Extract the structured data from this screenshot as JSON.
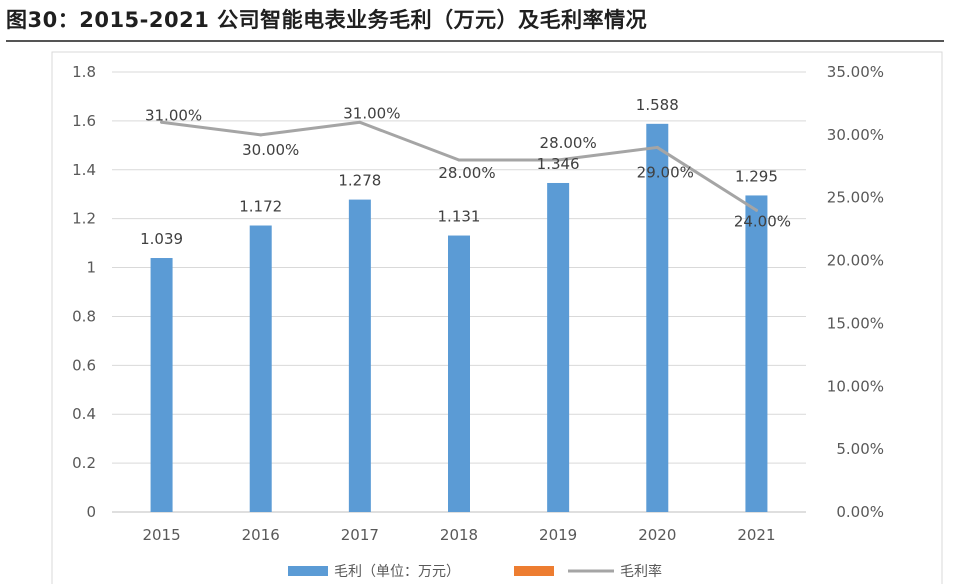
{
  "figure": {
    "title": "图30：2015-2021 公司智能电表业务毛利（万元）及毛利率情况"
  },
  "chart_data": {
    "type": "bar",
    "categories": [
      "2015",
      "2016",
      "2017",
      "2018",
      "2019",
      "2020",
      "2021"
    ],
    "series": [
      {
        "name": "毛利（单位：万元）",
        "type": "bar",
        "axis": "left",
        "color": "#5b9bd5",
        "values": [
          1.039,
          1.172,
          1.278,
          1.131,
          1.346,
          1.588,
          1.295
        ],
        "labels": [
          "1.039",
          "1.172",
          "1.278",
          "1.131",
          "1.346",
          "1.588",
          "1.295"
        ]
      },
      {
        "name": "毛利率",
        "type": "line",
        "axis": "right",
        "color": "#a5a5a5",
        "values": [
          31,
          30,
          31,
          28,
          28,
          29,
          24
        ],
        "labels": [
          "31.00%",
          "30.00%",
          "31.00%",
          "28.00%",
          "28.00%",
          "29.00%",
          "24.00%"
        ]
      }
    ],
    "legend_placeholder_color": "#ed7d31",
    "y_left": {
      "range": [
        0,
        1.8
      ],
      "ticks": [
        0,
        0.2,
        0.4,
        0.6,
        0.8,
        1,
        1.2,
        1.4,
        1.6,
        1.8
      ],
      "tick_labels": [
        "0",
        "0.2",
        "0.4",
        "0.6",
        "0.8",
        "1",
        "1.2",
        "1.4",
        "1.6",
        "1.8"
      ]
    },
    "y_right": {
      "range": [
        0,
        35
      ],
      "ticks": [
        0,
        5,
        10,
        15,
        20,
        25,
        30,
        35
      ],
      "tick_labels": [
        "0.00%",
        "5.00%",
        "10.00%",
        "15.00%",
        "20.00%",
        "25.00%",
        "30.00%",
        "35.00%"
      ]
    },
    "grid": true,
    "legend": "bottom"
  }
}
